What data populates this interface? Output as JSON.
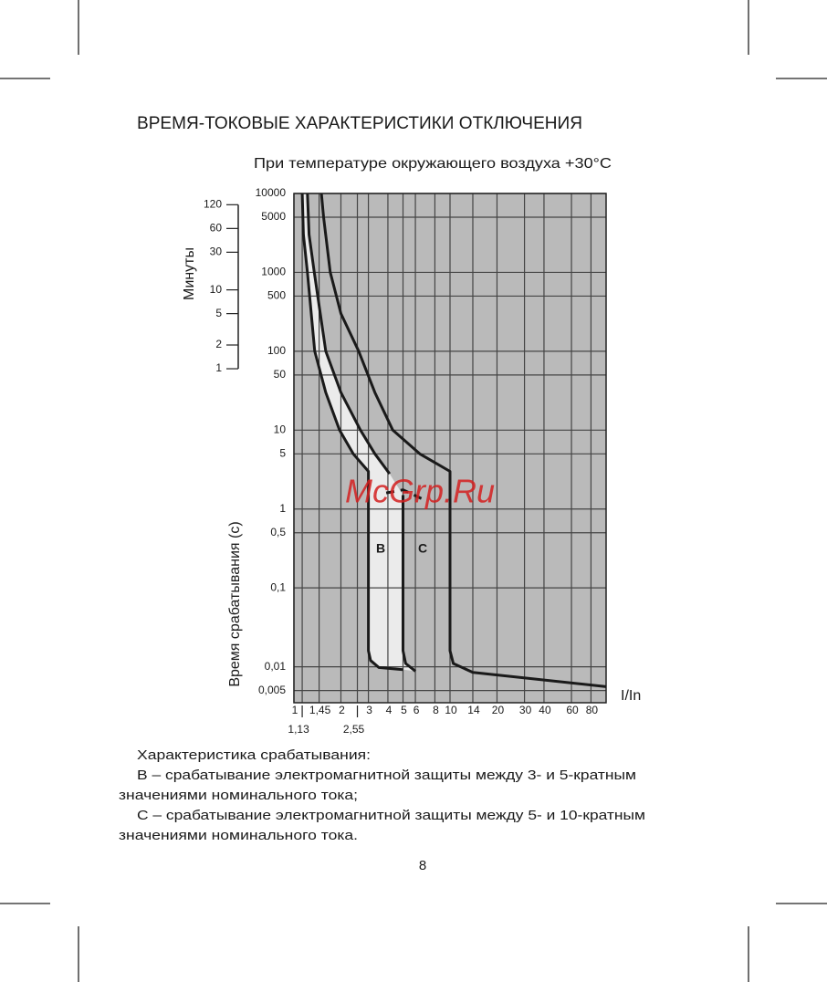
{
  "document": {
    "title": "ВРЕМЯ-ТОКОВЫЕ ХАРАКТЕРИСТИКИ ОТКЛЮЧЕНИЯ",
    "subtitle": "При температуре окружающего воздуха +30°C",
    "paragraphs": [
      "Характеристика срабатывания:",
      "В – срабатывание электромагнитной защиты между 3- и 5-кратным",
      "значениями номинального тока;",
      "С – срабатывание электромагнитной защиты между 5- и 10-кратным",
      "значениями номинального тока."
    ],
    "page_number": "8",
    "watermark": "McGrp.Ru"
  },
  "chart_data": {
    "type": "line",
    "xlabel": "I/In",
    "ylabel": "Время срабатывания (с)",
    "minutes_label": "Минуты",
    "minute_ticks": [
      1,
      2,
      5,
      10,
      30,
      60,
      120
    ],
    "xlog": true,
    "ylog": true,
    "grid": true,
    "background": "#bababa",
    "band_color": "#ebebeb",
    "line_color": "#1a1a1a",
    "xlim": [
      1,
      100
    ],
    "ylim": [
      0.0035,
      10000
    ],
    "xticks": [
      1,
      {
        "value": 1.45,
        "label": "1,45"
      },
      2,
      3,
      4,
      5,
      6,
      8,
      10,
      14,
      20,
      30,
      40,
      60,
      80
    ],
    "xticks_lower": [
      {
        "value": 1.13,
        "label": "1,13"
      },
      {
        "value": 2.55,
        "label": "2,55"
      }
    ],
    "yticks": [
      10000,
      5000,
      1000,
      500,
      100,
      50,
      10,
      5,
      1,
      {
        "value": 0.5,
        "label": "0,5"
      },
      {
        "value": 0.1,
        "label": "0,1"
      },
      {
        "value": 0.01,
        "label": "0,01"
      },
      {
        "value": 0.005,
        "label": "0,005"
      }
    ],
    "annotations": [
      "В",
      "С"
    ],
    "series": [
      {
        "x": [
          1.13,
          1.15,
          1.22,
          1.36,
          1.6,
          1.96,
          2.4,
          3,
          3,
          3.1,
          3.5,
          5
        ],
        "values": [
          10000,
          3000,
          1000,
          100,
          30,
          10,
          5,
          3,
          0.016,
          0.012,
          0.0098,
          0.0092
        ]
      },
      {
        "x": [
          1.22,
          1.25,
          1.35,
          1.6,
          2,
          2.67,
          3.3,
          4.1
        ],
        "values": [
          10000,
          3000,
          1000,
          100,
          30,
          10,
          5,
          2.8
        ]
      },
      {
        "x": [
          3.9,
          5,
          6.6
        ],
        "values": [
          1.6,
          1.75,
          1.35
        ],
        "dashed": true
      },
      {
        "x": [
          5,
          5,
          5.2,
          6
        ],
        "values": [
          1.5,
          0.016,
          0.011,
          0.0088
        ]
      },
      {
        "x": [
          1.5,
          1.55,
          1.71,
          2,
          2.6,
          3.3,
          4.3,
          6.4,
          10,
          10,
          10.5,
          14,
          100
        ],
        "values": [
          10000,
          5000,
          1000,
          300,
          100,
          30,
          10,
          5,
          3,
          0.016,
          0.011,
          0.0085,
          0.0056
        ]
      }
    ]
  }
}
